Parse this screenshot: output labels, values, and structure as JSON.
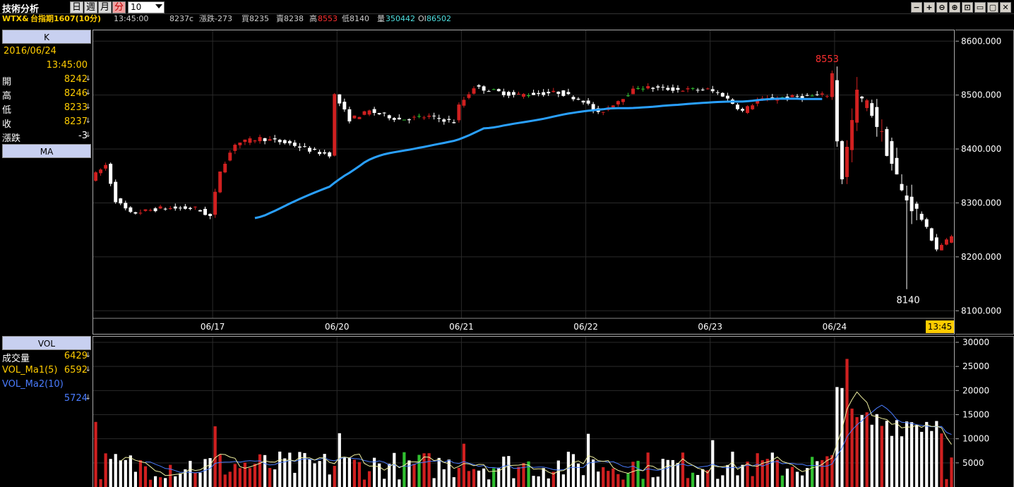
{
  "toolbar": {
    "title": "技術分析",
    "periods": [
      "日",
      "週",
      "月",
      "分"
    ],
    "active_period": "分",
    "interval": "10",
    "window_buttons": [
      "−",
      "+",
      "⊖",
      "⊕",
      "⊡",
      "▭",
      "▢",
      "✕"
    ]
  },
  "quote": {
    "symbol": "WTX&",
    "name": "台指期1607(10分)",
    "time": "13:45:00",
    "price": "8237c",
    "change_label": "漲跌-273",
    "bid_label": "買8235",
    "ask_label": "賣8238",
    "high_label": "高",
    "high_value": "8553",
    "low_label": "低8140",
    "volume_label": "量",
    "volume_value": "350442",
    "oi_label": "OI",
    "oi_value": "86502"
  },
  "left_panel": {
    "k_header": "K",
    "date": "2016/06/24",
    "time": "13:45:00",
    "rows": [
      {
        "label": "開",
        "value": "8242"
      },
      {
        "label": "高",
        "value": "8246"
      },
      {
        "label": "低",
        "value": "8233"
      },
      {
        "label": "收",
        "value": "8237"
      },
      {
        "label": "漲跌",
        "value": "-3"
      }
    ],
    "ma_header": "MA",
    "vol_header": "VOL",
    "vol_rows": [
      {
        "label": "成交量",
        "value": "6429"
      },
      {
        "label": "VOL_Ma1(5)",
        "value": "6592"
      },
      {
        "label": "VOL_Ma2(10)",
        "value": ""
      }
    ],
    "vol_ma2_value": "5724"
  },
  "chart_data": [
    {
      "type": "candlestick",
      "y_ticks": [
        "8600.000",
        "8500.000",
        "8400.000",
        "8300.000",
        "8200.000",
        "8100.000"
      ],
      "ylim": [
        8086,
        8620
      ],
      "x_ticks": [
        "06/17",
        "06/20",
        "06/21",
        "06/22",
        "06/23",
        "06/24"
      ],
      "bar_count": 173,
      "date_boundaries": [
        24,
        49,
        74,
        99,
        124,
        149
      ],
      "high_annotation": "8553",
      "low_annotation": "8140",
      "last_time_badge": "13:45",
      "colors": {
        "up": "#d02020",
        "down": "#ffffff",
        "flat": "#30c030",
        "ma": "#2aa0ff"
      }
    },
    {
      "type": "bar",
      "series": [
        "VOL",
        "VOL_Ma1(5)",
        "VOL_Ma2(10)"
      ],
      "y_ticks": [
        "30000",
        "25000",
        "20000",
        "15000",
        "10000",
        "5000"
      ],
      "ylim": [
        0,
        30000
      ],
      "colors": {
        "up": "#d02020",
        "down": "#ffffff",
        "flat": "#30c030",
        "ma1": "#f0f0a0",
        "ma2": "#4a7cff"
      }
    }
  ]
}
